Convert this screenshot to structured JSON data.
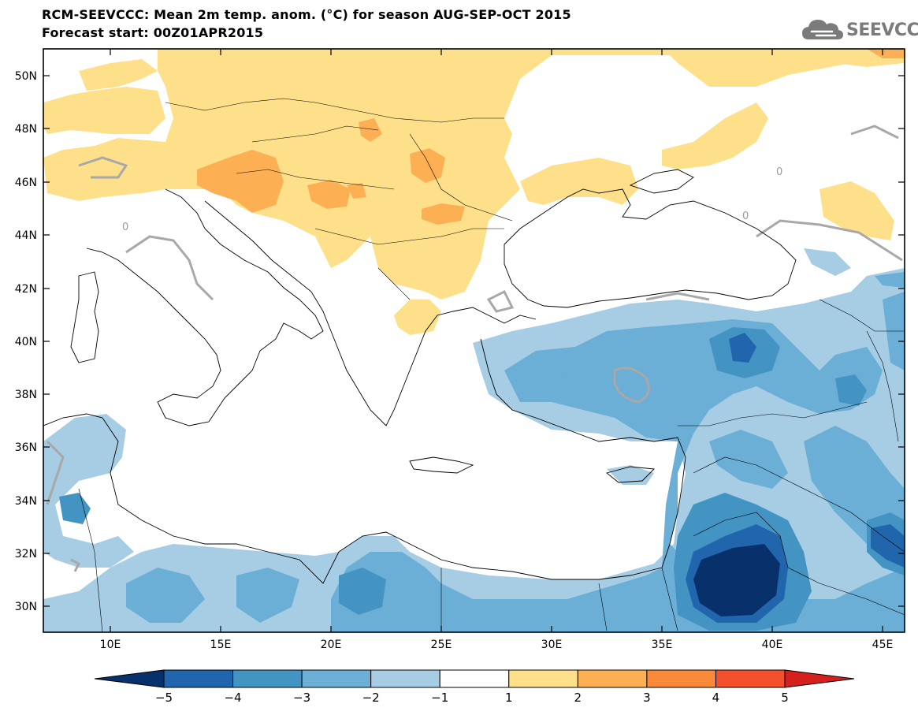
{
  "header": {
    "title_line1": "RCM-SEEVCCC: Mean 2m temp. anom. (°C) for season AUG-SEP-OCT 2015",
    "title_line2": "Forecast start: 00Z01APR2015"
  },
  "logo": {
    "text": "SEEVCCC",
    "icon": "cloud-icon"
  },
  "map": {
    "lon_range": [
      7,
      46
    ],
    "lat_range": [
      29,
      51
    ],
    "x_ticks": [
      "10E",
      "15E",
      "20E",
      "25E",
      "30E",
      "35E",
      "40E",
      "45E"
    ],
    "y_ticks": [
      "30N",
      "32N",
      "34N",
      "36N",
      "38N",
      "40N",
      "42N",
      "44N",
      "46N",
      "48N",
      "50N"
    ],
    "contour_label": "0"
  },
  "colorbar": {
    "labels": [
      "−5",
      "−4",
      "−3",
      "−2",
      "−1",
      "1",
      "2",
      "3",
      "4",
      "5"
    ],
    "colors": [
      "#08306b",
      "#2166ac",
      "#4393c3",
      "#6baed6",
      "#a6cde3",
      "#ffffff",
      "#fee08b",
      "#fdb053",
      "#f88a3a",
      "#f4502f",
      "#d6201e"
    ]
  }
}
